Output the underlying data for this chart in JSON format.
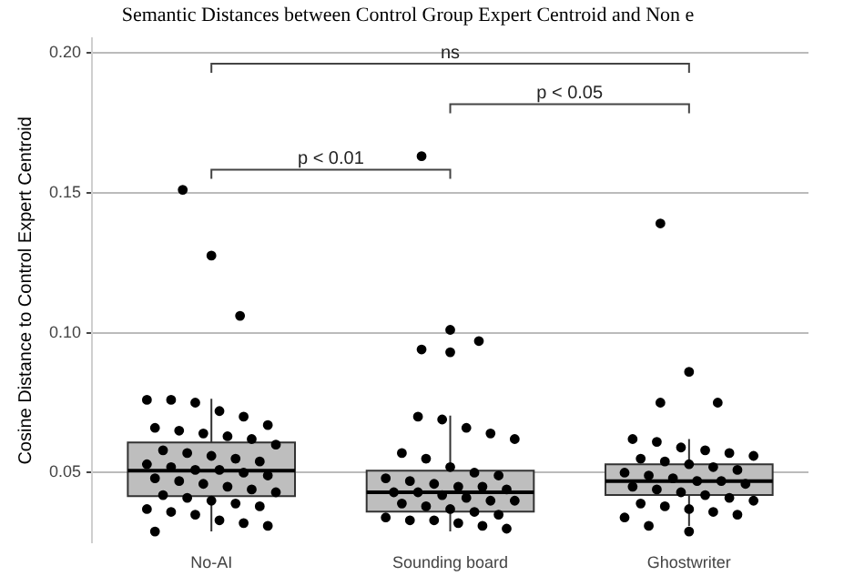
{
  "chart_data": {
    "type": "box",
    "title": "Semantic Distances between Control Group Expert Centroid and Non e",
    "ylabel": "Cosine Distance to Control Expert Centroid",
    "categories": [
      "No-AI",
      "Sounding board",
      "Ghostwriter"
    ],
    "boxes": [
      {
        "low": 0.029,
        "q1": 0.0416,
        "median": 0.0507,
        "q3": 0.0608,
        "high": 0.0764,
        "outliers": [
          0.151,
          0.1275,
          0.106
        ]
      },
      {
        "low": 0.029,
        "q1": 0.0361,
        "median": 0.043,
        "q3": 0.0507,
        "high": 0.0704,
        "outliers": [
          0.163,
          0.101,
          0.097,
          0.094,
          0.093
        ]
      },
      {
        "low": 0.031,
        "q1": 0.042,
        "median": 0.047,
        "q3": 0.053,
        "high": 0.062,
        "outliers": [
          0.139,
          0.086,
          0.075,
          0.075,
          0.029
        ]
      }
    ],
    "color": "#bebebe",
    "series": [
      {
        "type": "scatter",
        "color": "#000000",
        "x": [
          "No-AI",
          "No-AI",
          "No-AI",
          "No-AI",
          "No-AI",
          "No-AI",
          "No-AI",
          "No-AI",
          "No-AI",
          "No-AI",
          "No-AI",
          "No-AI",
          "No-AI",
          "No-AI",
          "No-AI",
          "No-AI",
          "No-AI",
          "No-AI",
          "No-AI",
          "No-AI",
          "No-AI",
          "No-AI",
          "No-AI",
          "No-AI",
          "No-AI",
          "No-AI",
          "No-AI",
          "No-AI",
          "No-AI",
          "No-AI",
          "No-AI",
          "No-AI",
          "No-AI",
          "No-AI",
          "No-AI",
          "No-AI",
          "No-AI",
          "No-AI",
          "No-AI",
          "No-AI",
          "No-AI",
          "Sounding board",
          "Sounding board",
          "Sounding board",
          "Sounding board",
          "Sounding board",
          "Sounding board",
          "Sounding board",
          "Sounding board",
          "Sounding board",
          "Sounding board",
          "Sounding board",
          "Sounding board",
          "Sounding board",
          "Sounding board",
          "Sounding board",
          "Sounding board",
          "Sounding board",
          "Sounding board",
          "Sounding board",
          "Sounding board",
          "Sounding board",
          "Sounding board",
          "Sounding board",
          "Sounding board",
          "Sounding board",
          "Sounding board",
          "Sounding board",
          "Sounding board",
          "Sounding board",
          "Sounding board",
          "Sounding board",
          "Sounding board",
          "Sounding board",
          "Ghostwriter",
          "Ghostwriter",
          "Ghostwriter",
          "Ghostwriter",
          "Ghostwriter",
          "Ghostwriter",
          "Ghostwriter",
          "Ghostwriter",
          "Ghostwriter",
          "Ghostwriter",
          "Ghostwriter",
          "Ghostwriter",
          "Ghostwriter",
          "Ghostwriter",
          "Ghostwriter",
          "Ghostwriter",
          "Ghostwriter",
          "Ghostwriter",
          "Ghostwriter",
          "Ghostwriter",
          "Ghostwriter",
          "Ghostwriter",
          "Ghostwriter",
          "Ghostwriter",
          "Ghostwriter",
          "Ghostwriter",
          "Ghostwriter",
          "Ghostwriter",
          "Ghostwriter",
          "Ghostwriter"
        ],
        "values": [
          0.076,
          0.076,
          0.075,
          0.072,
          0.07,
          0.067,
          0.066,
          0.065,
          0.064,
          0.063,
          0.062,
          0.06,
          0.058,
          0.057,
          0.056,
          0.055,
          0.054,
          0.053,
          0.052,
          0.051,
          0.051,
          0.05,
          0.049,
          0.048,
          0.047,
          0.046,
          0.045,
          0.044,
          0.043,
          0.042,
          0.041,
          0.04,
          0.039,
          0.038,
          0.037,
          0.036,
          0.035,
          0.033,
          0.032,
          0.031,
          0.029,
          0.07,
          0.069,
          0.066,
          0.064,
          0.062,
          0.057,
          0.055,
          0.052,
          0.05,
          0.049,
          0.048,
          0.047,
          0.046,
          0.045,
          0.045,
          0.044,
          0.043,
          0.043,
          0.042,
          0.041,
          0.04,
          0.04,
          0.039,
          0.038,
          0.037,
          0.036,
          0.035,
          0.034,
          0.033,
          0.033,
          0.032,
          0.031,
          0.03,
          0.062,
          0.061,
          0.059,
          0.058,
          0.057,
          0.056,
          0.055,
          0.054,
          0.053,
          0.052,
          0.051,
          0.05,
          0.049,
          0.048,
          0.047,
          0.047,
          0.046,
          0.045,
          0.044,
          0.043,
          0.042,
          0.041,
          0.04,
          0.039,
          0.038,
          0.037,
          0.036,
          0.035,
          0.034,
          0.031
        ]
      }
    ],
    "ylim": [
      0.025,
      0.205
    ],
    "yticks": [
      0.05,
      {
        "value": 0.1,
        "label": "0.10"
      },
      0.15,
      {
        "value": 0.2,
        "label": "0.20"
      }
    ],
    "grid": "y",
    "marker": "circle",
    "annotations": [
      "p < 0.01",
      "p < 0.05",
      "ns"
    ]
  }
}
